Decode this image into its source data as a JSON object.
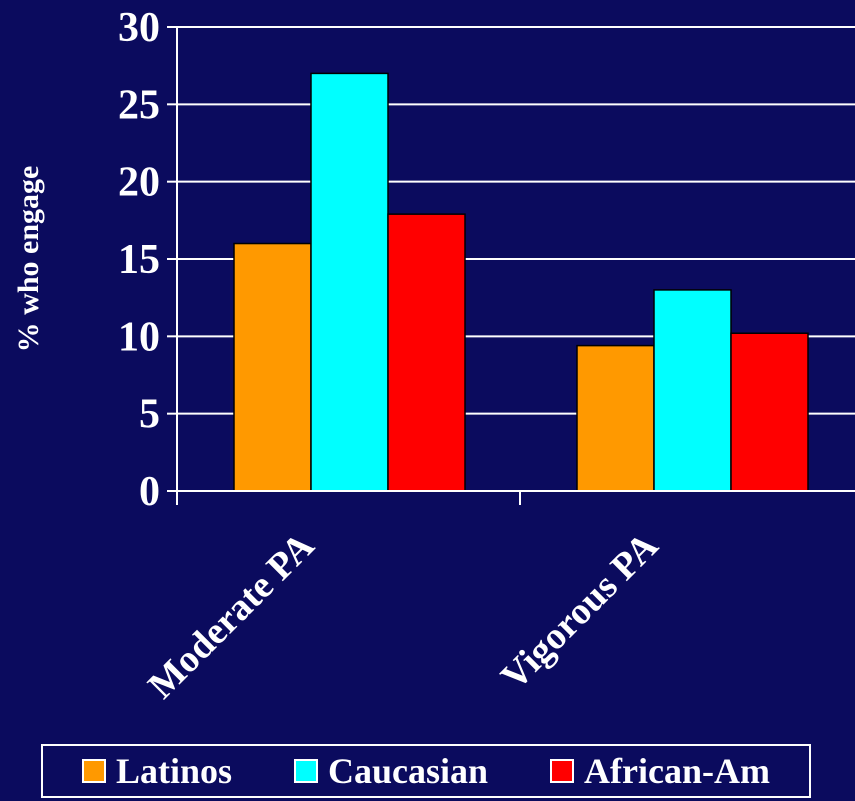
{
  "chart_data": {
    "type": "bar",
    "categories": [
      "Moderate PA",
      "Vigorous PA"
    ],
    "series": [
      {
        "name": "Latinos",
        "values": [
          16,
          9.4
        ],
        "color": "#ff9900"
      },
      {
        "name": "Caucasian",
        "values": [
          27,
          13
        ],
        "color": "#00ffff"
      },
      {
        "name": "African-Am",
        "values": [
          17.9,
          10.2
        ],
        "color": "#ff0000"
      }
    ],
    "ylabel": "% who engage",
    "ylim": [
      0,
      30
    ],
    "yticks": [
      "0",
      "5",
      "10",
      "15",
      "20",
      "25",
      "30"
    ],
    "grid": true,
    "legend_position": "bottom"
  }
}
